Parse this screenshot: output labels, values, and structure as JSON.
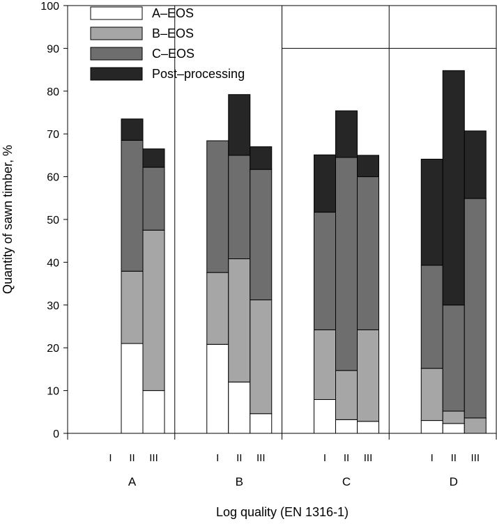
{
  "chart_data": {
    "type": "bar",
    "stacked": true,
    "xlabel": "Log quality (EN 1316-1)",
    "ylabel": "Quantity of sawn timber, %",
    "ylim": [
      0,
      100
    ],
    "yticks": [
      "0",
      "10",
      "20",
      "30",
      "40",
      "50",
      "60",
      "70",
      "80",
      "90",
      "100"
    ],
    "groups": [
      "A",
      "B",
      "C",
      "D"
    ],
    "subcategories": [
      "I",
      "II",
      "III"
    ],
    "grid": "major vertical lines between groups; horizontal line at 90 in groups C and D",
    "legend_position": "top-left",
    "series": [
      {
        "name": "A–EOS",
        "color": "#ffffff",
        "values": [
          [
            0,
            21.0,
            10.0
          ],
          [
            20.8,
            12.0,
            4.6
          ],
          [
            7.9,
            3.2,
            2.8
          ],
          [
            3.0,
            2.3,
            0.0
          ]
        ]
      },
      {
        "name": "B–EOS",
        "color": "#a6a6a6",
        "values": [
          [
            0,
            16.9,
            37.5
          ],
          [
            16.8,
            28.8,
            26.6
          ],
          [
            16.3,
            11.5,
            21.4
          ],
          [
            12.2,
            2.9,
            3.6
          ]
        ]
      },
      {
        "name": "C–EOS",
        "color": "#6e6e6e",
        "values": [
          [
            0,
            30.6,
            14.7
          ],
          [
            30.8,
            24.2,
            30.5
          ],
          [
            27.5,
            49.8,
            35.8
          ],
          [
            24.1,
            24.8,
            51.3
          ]
        ]
      },
      {
        "name": "Post–processing",
        "color": "#262626",
        "values": [
          [
            0,
            5.0,
            4.3
          ],
          [
            0.0,
            14.2,
            5.3
          ],
          [
            13.4,
            10.9,
            5.0
          ],
          [
            24.8,
            54.8,
            15.8
          ]
        ]
      }
    ]
  }
}
